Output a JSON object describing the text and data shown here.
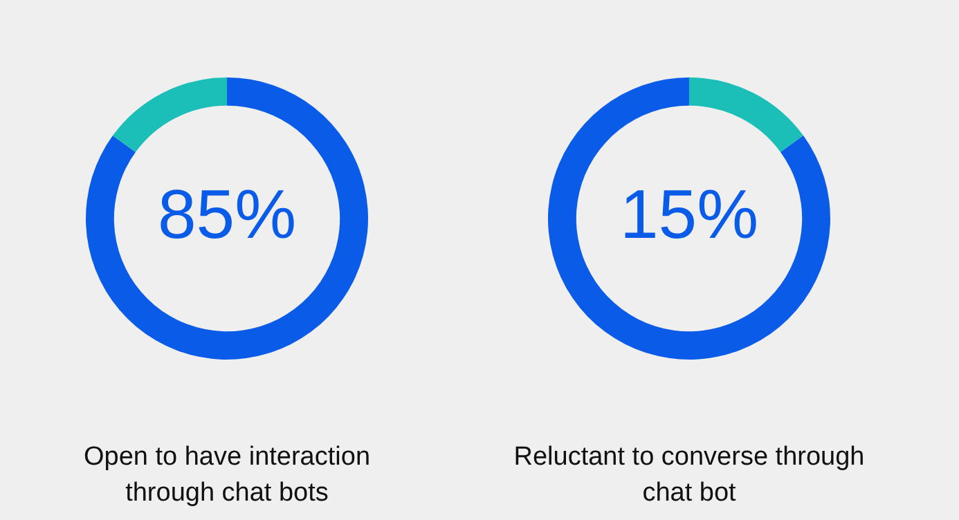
{
  "chart_data": [
    {
      "type": "donut",
      "title": "Open to have interaction through chat bots",
      "categories": [
        null,
        null
      ],
      "values": [
        85,
        15
      ],
      "colors": [
        "#0a5ce8",
        "#1cbfb8"
      ],
      "value_labels": [
        "85%",
        null
      ],
      "legend": false
    },
    {
      "type": "donut",
      "title": "Reluctant to converse through chat bot",
      "categories": [
        null,
        null
      ],
      "values": [
        15,
        85
      ],
      "colors": [
        "#1cbfb8",
        "#0a5ce8"
      ],
      "value_labels": [
        "15%",
        null
      ],
      "legend": false
    }
  ]
}
